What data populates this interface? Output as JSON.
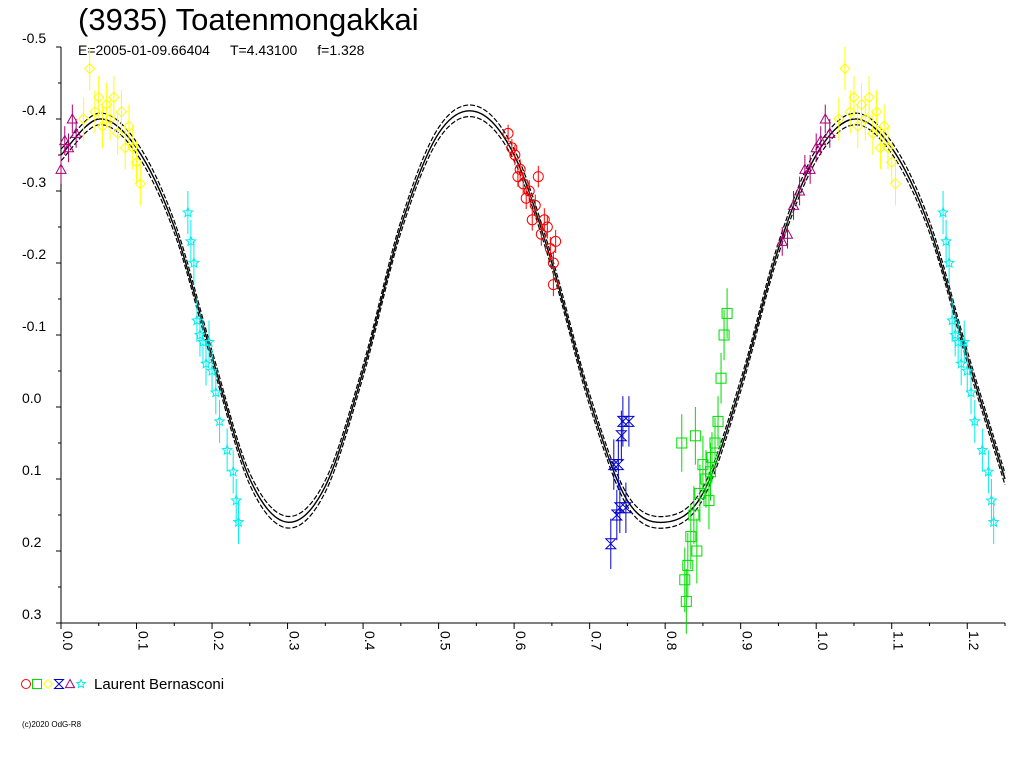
{
  "title": "(3935) Toatenmongakkai",
  "subtitle": {
    "epoch": "E=2005-01-09.66404",
    "period": "T=4.43100",
    "fourier": "f=1.328"
  },
  "legend": {
    "observer": "Laurent Bernasconi",
    "session_symbols": [
      "circle",
      "square",
      "diamond",
      "hourglass",
      "triangle",
      "star"
    ]
  },
  "copyright": "(c)2020 OdG-R8",
  "chart_data": {
    "type": "scatter",
    "xlim": [
      0.0,
      1.25
    ],
    "ylim": [
      -0.5,
      0.3
    ],
    "y_inverted": true,
    "x_ticks": [
      "0.0",
      "0.1",
      "0.2",
      "0.3",
      "0.4",
      "0.5",
      "0.6",
      "0.7",
      "0.8",
      "0.9",
      "1.0",
      "1.1",
      "1.2"
    ],
    "x_tick_values": [
      0.0,
      0.1,
      0.2,
      0.3,
      0.4,
      0.5,
      0.6,
      0.7,
      0.8,
      0.9,
      1.0,
      1.1,
      1.2
    ],
    "y_ticks": [
      "-0.5",
      "-0.4",
      "-0.3",
      "-0.2",
      "-0.1",
      "0.0",
      "0.1",
      "0.2",
      "0.3"
    ],
    "y_tick_values": [
      -0.5,
      -0.4,
      -0.3,
      -0.2,
      -0.1,
      0.0,
      0.1,
      0.2,
      0.3
    ],
    "grid": false,
    "fit_curve": {
      "x": [
        0.0,
        0.05,
        0.1,
        0.15,
        0.2,
        0.25,
        0.3,
        0.35,
        0.4,
        0.45,
        0.5,
        0.55,
        0.6,
        0.65,
        0.7,
        0.75,
        0.8,
        0.85,
        0.9,
        0.95,
        1.0,
        1.05,
        1.1,
        1.15,
        1.2,
        1.25
      ],
      "y": [
        -0.35,
        -0.4,
        -0.36,
        -0.25,
        -0.07,
        0.1,
        0.16,
        0.11,
        -0.05,
        -0.25,
        -0.38,
        -0.41,
        -0.35,
        -0.2,
        -0.01,
        0.13,
        0.16,
        0.12,
        -0.03,
        -0.22,
        -0.35,
        -0.4,
        -0.36,
        -0.25,
        -0.07,
        0.1
      ],
      "band": 0.008,
      "color": "#000000"
    },
    "series": [
      {
        "symbol": "circle",
        "color": "#ff0000",
        "x": [
          0.592,
          0.597,
          0.601,
          0.605,
          0.608,
          0.612,
          0.616,
          0.62,
          0.624,
          0.628,
          0.632,
          0.636,
          0.64,
          0.644,
          0.648,
          0.652,
          0.655,
          0.652
        ],
        "y": [
          -0.38,
          -0.36,
          -0.35,
          -0.32,
          -0.33,
          -0.31,
          -0.29,
          -0.3,
          -0.26,
          -0.28,
          -0.32,
          -0.24,
          -0.26,
          -0.25,
          -0.22,
          -0.2,
          -0.23,
          -0.17
        ],
        "err": [
          0.012,
          0.012,
          0.014,
          0.014,
          0.014,
          0.014,
          0.015,
          0.015,
          0.015,
          0.015,
          0.015,
          0.016,
          0.016,
          0.016,
          0.016,
          0.016,
          0.016,
          0.016
        ]
      },
      {
        "symbol": "square",
        "color": "#00dd00",
        "x": [
          0.822,
          0.826,
          0.83,
          0.834,
          0.838,
          0.842,
          0.846,
          0.85,
          0.854,
          0.858,
          0.862,
          0.866,
          0.87,
          0.874,
          0.878,
          0.882,
          0.86,
          0.84,
          0.828
        ],
        "y": [
          0.05,
          0.24,
          0.22,
          0.18,
          0.15,
          0.2,
          0.12,
          0.08,
          0.1,
          0.13,
          0.07,
          0.05,
          0.02,
          -0.04,
          -0.1,
          -0.13,
          0.09,
          0.04,
          0.27
        ],
        "err": [
          0.04,
          0.045,
          0.045,
          0.045,
          0.04,
          0.045,
          0.04,
          0.04,
          0.04,
          0.04,
          0.035,
          0.035,
          0.035,
          0.035,
          0.035,
          0.035,
          0.04,
          0.04,
          0.045
        ]
      },
      {
        "symbol": "diamond",
        "color": "#ffff00",
        "x": [
          0.03,
          0.038,
          0.045,
          0.05,
          0.055,
          0.06,
          0.065,
          0.07,
          0.075,
          0.08,
          0.085,
          0.09,
          0.095,
          0.1,
          0.105,
          1.03,
          1.038,
          1.045,
          1.05,
          1.055,
          1.06,
          1.065,
          1.07,
          1.075,
          1.08,
          1.085,
          1.09,
          1.095,
          1.1,
          1.105
        ],
        "y": [
          -0.4,
          -0.47,
          -0.41,
          -0.43,
          -0.39,
          -0.42,
          -0.4,
          -0.43,
          -0.38,
          -0.41,
          -0.36,
          -0.39,
          -0.36,
          -0.34,
          -0.31,
          -0.4,
          -0.47,
          -0.41,
          -0.43,
          -0.39,
          -0.42,
          -0.4,
          -0.43,
          -0.38,
          -0.41,
          -0.36,
          -0.39,
          -0.36,
          -0.34,
          -0.31
        ],
        "err": [
          0.03,
          0.03,
          0.03,
          0.03,
          0.03,
          0.03,
          0.03,
          0.03,
          0.03,
          0.03,
          0.03,
          0.03,
          0.03,
          0.03,
          0.03,
          0.03,
          0.03,
          0.03,
          0.03,
          0.03,
          0.03,
          0.03,
          0.03,
          0.03,
          0.03,
          0.03,
          0.03,
          0.03,
          0.03,
          0.03
        ]
      },
      {
        "symbol": "hourglass",
        "color": "#0000cc",
        "x": [
          0.728,
          0.732,
          0.736,
          0.74,
          0.744,
          0.748,
          0.752,
          0.738,
          0.742
        ],
        "y": [
          0.19,
          0.08,
          0.15,
          0.14,
          0.02,
          0.14,
          0.02,
          0.08,
          0.04
        ],
        "err": [
          0.035,
          0.035,
          0.035,
          0.035,
          0.035,
          0.035,
          0.035,
          0.035,
          0.035
        ]
      },
      {
        "symbol": "triangle",
        "color": "#aa0077",
        "x": [
          0.0,
          0.005,
          0.01,
          0.015,
          0.02,
          0.955,
          0.962,
          0.97,
          0.978,
          0.985,
          0.992,
          1.0,
          1.006,
          1.012,
          1.018
        ],
        "y": [
          -0.33,
          -0.37,
          -0.36,
          -0.4,
          -0.38,
          -0.23,
          -0.24,
          -0.28,
          -0.3,
          -0.33,
          -0.33,
          -0.36,
          -0.37,
          -0.4,
          -0.38
        ],
        "err": [
          0.02,
          0.02,
          0.02,
          0.02,
          0.02,
          0.02,
          0.02,
          0.02,
          0.02,
          0.02,
          0.02,
          0.02,
          0.02,
          0.02,
          0.02
        ]
      },
      {
        "symbol": "star",
        "color": "#00eeee",
        "x": [
          0.168,
          0.172,
          0.176,
          0.18,
          0.184,
          0.188,
          0.192,
          0.196,
          0.2,
          0.205,
          0.21,
          0.22,
          0.228,
          0.232,
          0.235,
          1.168,
          1.172,
          1.176,
          1.18,
          1.184,
          1.188,
          1.192,
          1.196,
          1.2,
          1.205,
          1.21,
          1.22,
          1.228,
          1.232,
          1.235
        ],
        "y": [
          -0.27,
          -0.23,
          -0.2,
          -0.12,
          -0.1,
          -0.09,
          -0.06,
          -0.09,
          -0.05,
          -0.02,
          0.02,
          0.06,
          0.09,
          0.13,
          0.16,
          -0.27,
          -0.23,
          -0.2,
          -0.12,
          -0.1,
          -0.09,
          -0.06,
          -0.09,
          -0.05,
          -0.02,
          0.02,
          0.06,
          0.09,
          0.13,
          0.16
        ],
        "err": [
          0.03,
          0.03,
          0.03,
          0.03,
          0.03,
          0.03,
          0.03,
          0.03,
          0.03,
          0.03,
          0.03,
          0.03,
          0.03,
          0.03,
          0.03,
          0.03,
          0.03,
          0.03,
          0.03,
          0.03,
          0.03,
          0.03,
          0.03,
          0.03,
          0.03,
          0.03,
          0.03,
          0.03,
          0.03,
          0.03
        ]
      }
    ]
  }
}
